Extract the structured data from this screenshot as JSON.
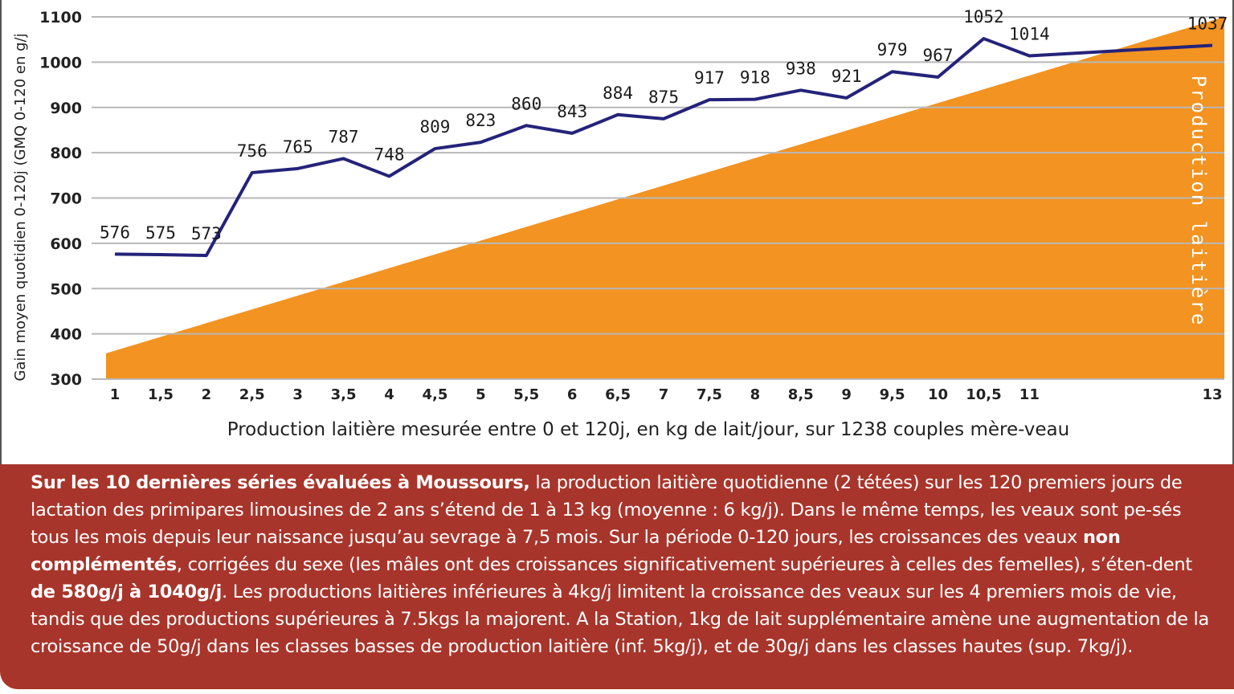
{
  "chart_data": {
    "type": "line",
    "title": "",
    "xlabel": "Production  laitière mesurée entre 0 et 120j, en kg de lait/jour, sur 1238 couples mère-veau",
    "ylabel": "Gain moyen quotidien 0-120j (GMQ 0-120 en g/j",
    "vertical_label": "Production laitière",
    "ylim": [
      300,
      1100
    ],
    "yticks": [
      300,
      400,
      500,
      600,
      700,
      800,
      900,
      1000,
      1100
    ],
    "grid": true,
    "categories": [
      "1",
      "1,5",
      "2",
      "2,5",
      "3",
      "3,5",
      "4",
      "4,5",
      "5",
      "5,5",
      "6",
      "6,5",
      "7",
      "7,5",
      "8",
      "8,5",
      "9",
      "9,5",
      "10",
      "10,5",
      "11",
      "13"
    ],
    "values": [
      576,
      575,
      573,
      756,
      765,
      787,
      748,
      809,
      823,
      860,
      843,
      884,
      875,
      917,
      918,
      938,
      921,
      979,
      967,
      1052,
      1014,
      1037
    ],
    "background_area": {
      "description_color": "orange wedge rising left to right",
      "color": "#f39321"
    },
    "line_color": "#24237a"
  },
  "text_block": {
    "bold_intro": "Sur les 10 dernières séries évaluées à Moussours,",
    "part1": " la production laitière quotidienne (2 tétées) sur les 120 premiers jours de lactation des primipares limousines de 2 ans s’étend de 1 à 13 kg (moyenne : 6 kg/j). Dans le même temps, les veaux sont pe-sés tous les mois depuis leur naissance jusqu’au sevrage à 7,5 mois. Sur la période 0-120 jours, les croissances des veaux ",
    "bold_non_complementes": "non complémentés",
    "part2": ", corrigées du sexe (les mâles ont des croissances significativement supérieures à celles des femelles), s’éten-dent ",
    "bold_range": "de 580g/j à 1040g/j",
    "part3": ". Les productions laitières inférieures à 4kg/j limitent la croissance des veaux sur les 4 premiers mois de vie, tandis que des productions supérieures à 7.5kgs la majorent. A la Station, 1kg de lait supplémentaire amène une augmentation de la croissance de 50g/j dans les classes basses de production laitière (inf. 5kg/j), et de 30g/j dans les classes hautes (sup. 7kg/j)."
  }
}
